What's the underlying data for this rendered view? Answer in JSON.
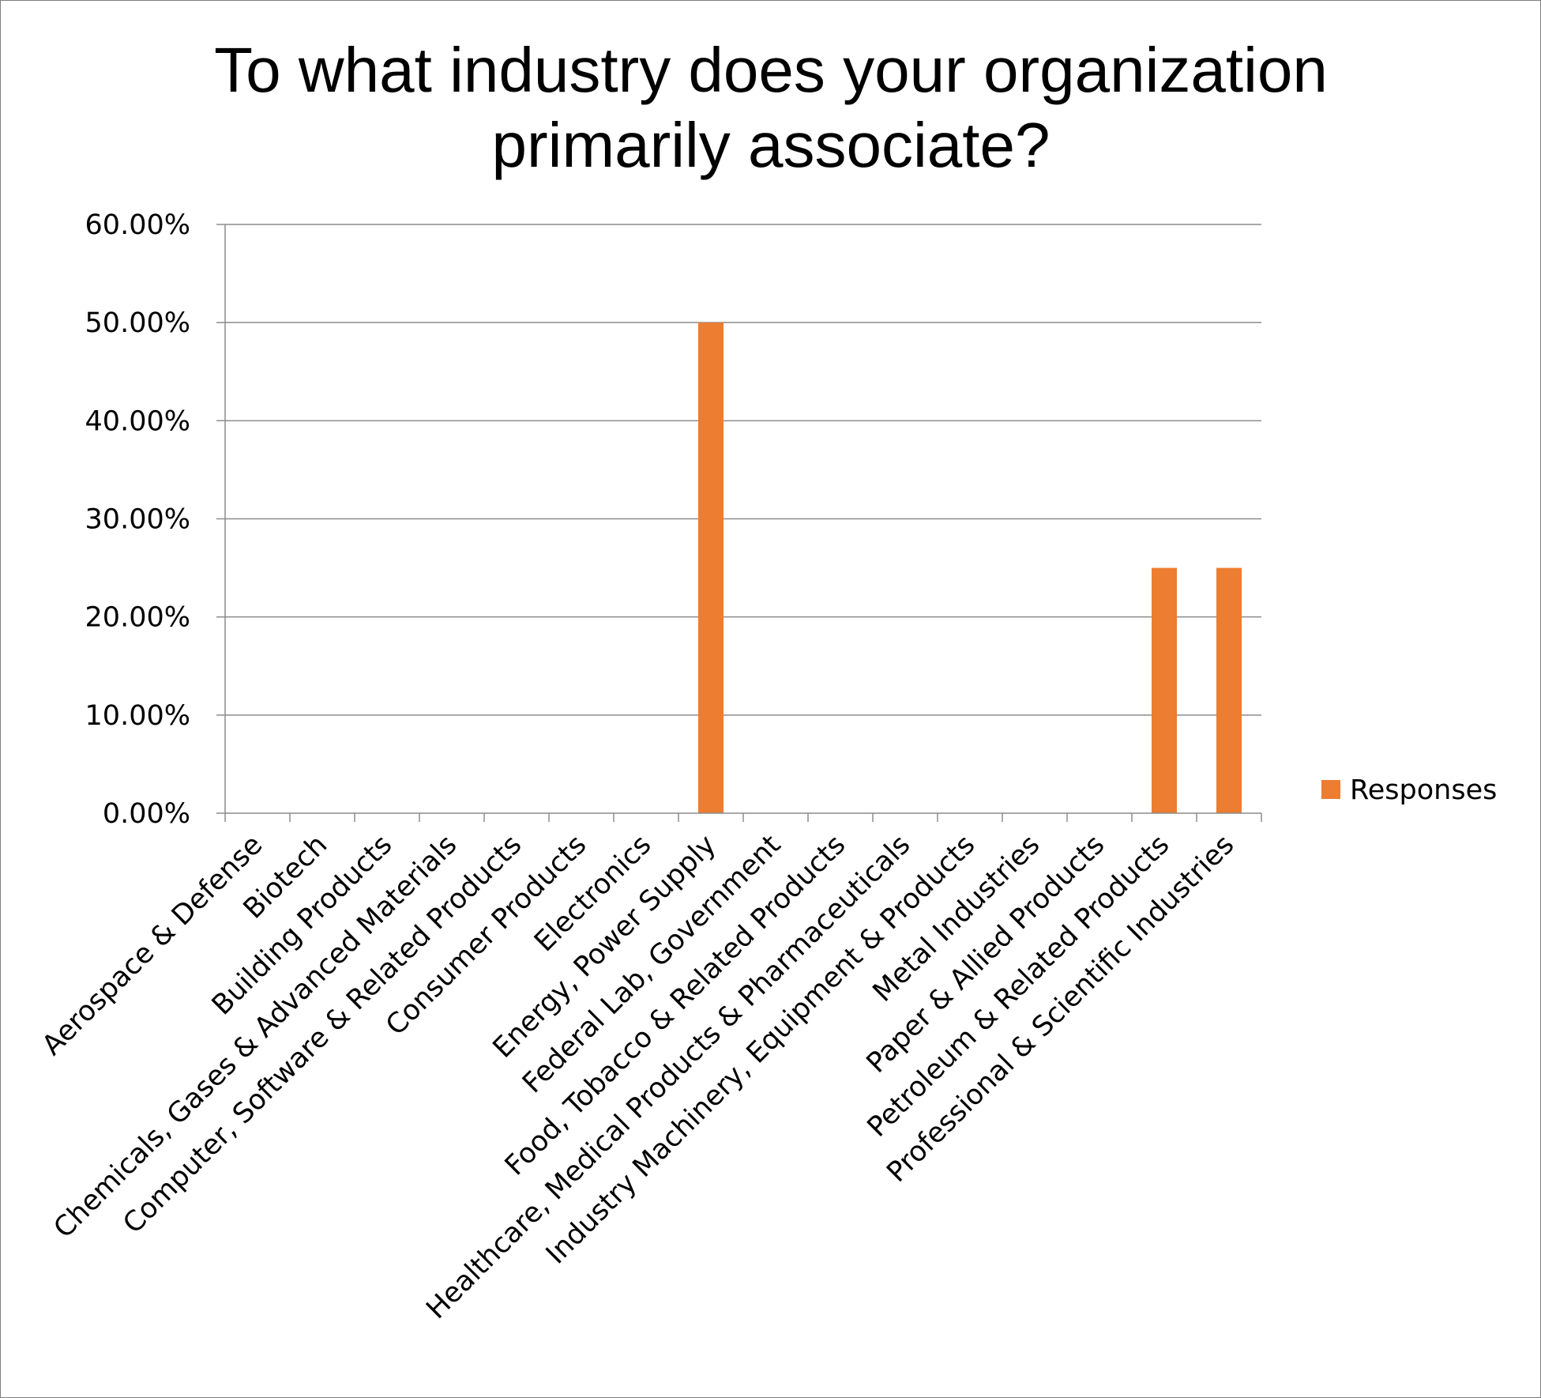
{
  "chart_data": {
    "type": "bar",
    "title_lines": [
      "To what industry does your organization",
      "primarily associate?"
    ],
    "categories": [
      "Aerospace & Defense",
      "Biotech",
      "Building Products",
      "Chemicals, Gases & Advanced Materials",
      "Computer, Software & Related Products",
      "Consumer Products",
      "Electronics",
      "Energy, Power Supply",
      "Federal Lab, Government",
      "Food, Tobacco & Related Products",
      "Healthcare, Medical Products & Pharmaceuticals",
      "Industry Machinery, Equipment & Products",
      "Metal Industries",
      "Paper & Allied Products",
      "Petroleum & Related Products",
      "Professional & Scientific Industries"
    ],
    "series": [
      {
        "name": "Responses",
        "color": "#ED7D31",
        "values": [
          0,
          0,
          0,
          0,
          0,
          0,
          0,
          0.5,
          0,
          0,
          0,
          0,
          0,
          0,
          0.25,
          0.25
        ]
      }
    ],
    "yticks": [
      "0.00%",
      "10.00%",
      "20.00%",
      "30.00%",
      "40.00%",
      "50.00%",
      "60.00%"
    ],
    "ylim": [
      0,
      0.6
    ],
    "grid": true,
    "legend_position": "right"
  }
}
